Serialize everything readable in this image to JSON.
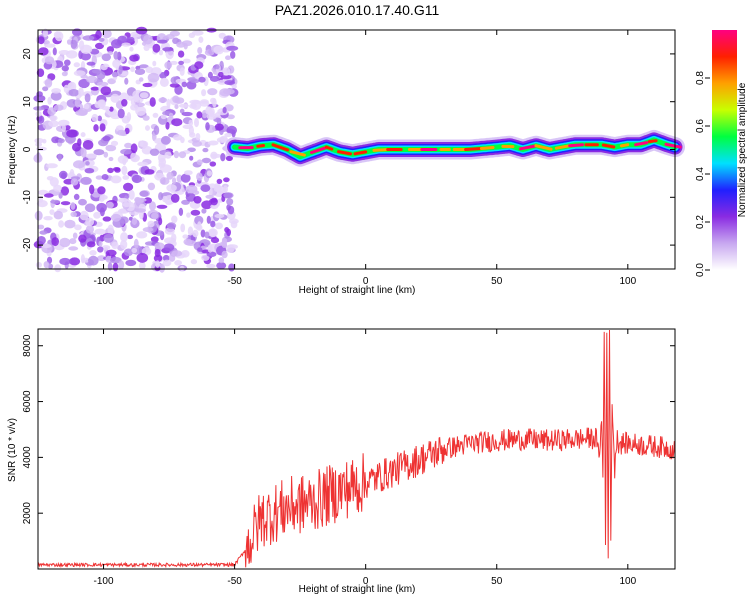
{
  "title": "PAZ1.2026.010.17.40.G11",
  "chart_data": [
    {
      "type": "heatmap",
      "name": "spectrogram",
      "xlabel": "Height of straight line (km)",
      "ylabel": "Frequency (Hz)",
      "xlim": [
        -125,
        118
      ],
      "ylim": [
        -25,
        25
      ],
      "xticks": [
        -100,
        -50,
        0,
        50,
        100
      ],
      "yticks": [
        -20,
        -10,
        0,
        10,
        20
      ],
      "noise_region_x": [
        -125,
        -50
      ],
      "signal_onset_km": -50,
      "ridge": {
        "x": [
          -50,
          -45,
          -40,
          -35,
          -30,
          -25,
          -20,
          -15,
          -10,
          -5,
          0,
          5,
          10,
          20,
          30,
          40,
          50,
          55,
          60,
          65,
          70,
          75,
          80,
          85,
          90,
          95,
          100,
          105,
          110,
          115,
          118
        ],
        "y": [
          0.5,
          0.2,
          0.8,
          1.0,
          0,
          -1.5,
          -0.5,
          0.5,
          -0.5,
          -1.0,
          -0.5,
          0,
          0,
          0,
          0,
          0,
          0.5,
          0.8,
          0,
          0.8,
          0,
          0.5,
          1.0,
          1.0,
          1.0,
          0.5,
          1.0,
          1.0,
          2.0,
          1.0,
          0.5
        ]
      },
      "colorbar": {
        "label": "Normalized spectral amplitude",
        "ticks": [
          0.0,
          0.2,
          0.4,
          0.6,
          0.8
        ],
        "tick_labels": [
          "0.0",
          "0.2",
          "0.4",
          "0.6",
          "0.8"
        ],
        "range": [
          0,
          1
        ],
        "colors": [
          "#ffffff",
          "#c8a8f0",
          "#8a2be2",
          "#2020ff",
          "#00e0ff",
          "#00ff40",
          "#c8ff00",
          "#ffa000",
          "#ff2000",
          "#ff0080"
        ]
      }
    },
    {
      "type": "line",
      "name": "snr",
      "xlabel": "Height of straight line (km)",
      "ylabel": "SNR (10 * v/v)",
      "xlim": [
        -125,
        118
      ],
      "ylim": [
        0,
        8600
      ],
      "xticks": [
        -100,
        -50,
        0,
        50,
        100
      ],
      "yticks": [
        2000,
        4000,
        6000,
        8000
      ],
      "color": "#ee3333",
      "envelope": {
        "x": [
          -125,
          -50,
          -45,
          -40,
          -30,
          -20,
          -10,
          0,
          10,
          20,
          30,
          40,
          50,
          60,
          70,
          80,
          88,
          90,
          92,
          94,
          96,
          100,
          110,
          118
        ],
        "y": [
          150,
          150,
          800,
          1800,
          2200,
          2400,
          2800,
          3100,
          3500,
          3900,
          4300,
          4500,
          4600,
          4650,
          4600,
          4650,
          4700,
          4600,
          4700,
          4600,
          4500,
          4500,
          4400,
          4300
        ]
      },
      "spike": {
        "x": [
          88,
          89,
          90,
          90.5,
          91,
          91.5,
          92,
          92.5,
          93,
          93.5,
          94,
          95,
          96
        ],
        "y": [
          4700,
          4000,
          5300,
          3200,
          8600,
          900,
          8600,
          600,
          8600,
          1000,
          6000,
          3500,
          5000
        ]
      },
      "noise_amplitude": [
        {
          "x_from": -125,
          "x_to": -46,
          "amp": 60
        },
        {
          "x_from": -46,
          "x_to": 0,
          "amp": 1100
        },
        {
          "x_from": 0,
          "x_to": 30,
          "amp": 600
        },
        {
          "x_from": 30,
          "x_to": 118,
          "amp": 400
        }
      ]
    }
  ]
}
